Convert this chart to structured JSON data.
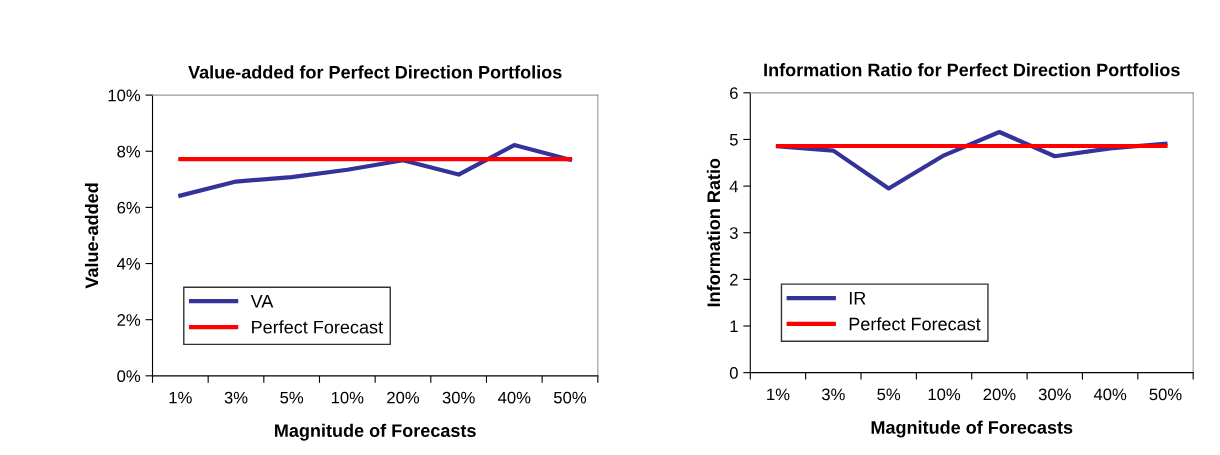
{
  "chart_data": [
    {
      "type": "line",
      "title": "Value-added for Perfect Direction Portfolios",
      "xlabel": "Magnitude of Forecasts",
      "ylabel": "Value-added",
      "categories": [
        "1%",
        "3%",
        "5%",
        "10%",
        "20%",
        "30%",
        "40%",
        "50%"
      ],
      "series": [
        {
          "name": "VA",
          "color": "#333399",
          "values": [
            6.42,
            6.92,
            7.08,
            7.34,
            7.68,
            7.17,
            8.22,
            7.7
          ]
        },
        {
          "name": "Perfect Forecast",
          "color": "#ff0000",
          "values": [
            7.72,
            7.72,
            7.72,
            7.72,
            7.72,
            7.72,
            7.72,
            7.72
          ]
        }
      ],
      "ylim": [
        0,
        10
      ],
      "yticks": [
        {
          "value": 0,
          "label": "0%"
        },
        {
          "value": 2,
          "label": "2%"
        },
        {
          "value": 4,
          "label": "4%"
        },
        {
          "value": 6,
          "label": "6%"
        },
        {
          "value": 8,
          "label": "8%"
        },
        {
          "value": 10,
          "label": "10%"
        }
      ],
      "grid": false,
      "legend": "bottom left",
      "marker": "none",
      "line_style": "solid"
    },
    {
      "type": "line",
      "title": "Information Ratio for Perfect Direction Portfolios",
      "xlabel": "Magnitude of Forecasts",
      "ylabel": "Information Ratio",
      "categories": [
        "1%",
        "3%",
        "5%",
        "10%",
        "20%",
        "30%",
        "40%",
        "50%"
      ],
      "series": [
        {
          "name": "IR",
          "color": "#333399",
          "values": [
            4.85,
            4.76,
            3.95,
            4.66,
            5.16,
            4.64,
            4.81,
            4.91
          ]
        },
        {
          "name": "Perfect Forecast",
          "color": "#ff0000",
          "values": [
            4.86,
            4.86,
            4.86,
            4.86,
            4.86,
            4.86,
            4.86,
            4.86
          ]
        }
      ],
      "ylim": [
        0,
        6
      ],
      "yticks": [
        0,
        1,
        2,
        3,
        4,
        5,
        6
      ],
      "grid": false,
      "legend": "bottom left",
      "marker": "none",
      "line_style": "solid"
    }
  ]
}
